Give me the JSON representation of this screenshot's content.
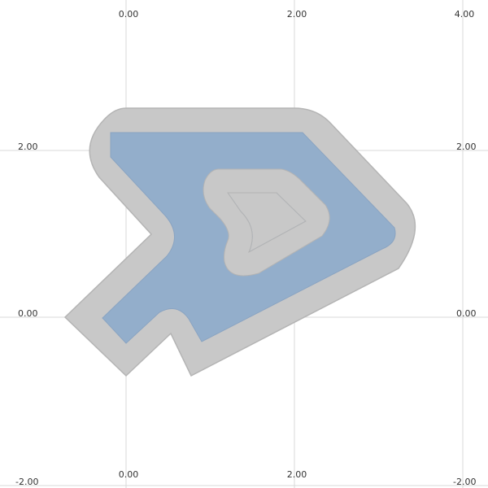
{
  "colors": {
    "background": "#ffffff",
    "grid": "#d8d8d8",
    "buffer_fill": "#c8c8c8",
    "buffer_stroke": "#b4b4b4",
    "shape_fill": "#93aecb",
    "shape_stroke": "#8aa4c2",
    "label": "#333333"
  },
  "chart_data": {
    "type": "geometry",
    "xlim": [
      -1.5,
      4.3
    ],
    "ylim": [
      -2.05,
      3.7
    ],
    "grid": true,
    "x_gridlines": [
      0,
      2,
      4
    ],
    "y_gridlines": [
      -2,
      0,
      2
    ],
    "tick_labels": {
      "top": [
        "0.00",
        "2.00",
        "4.00"
      ],
      "bottom": [
        "0.00",
        "2.00"
      ],
      "left": [
        "2.00",
        "0.00",
        "-2.00"
      ],
      "right": [
        "2.00",
        "0.00",
        "-2.00"
      ]
    },
    "polygon": {
      "exterior": [
        [
          -0.2,
          2.2
        ],
        [
          2.1,
          2.2
        ],
        [
          3.2,
          1.0
        ],
        [
          0.9,
          -0.25
        ],
        [
          0.55,
          -0.1
        ],
        [
          0.05,
          -0.25
        ],
        [
          -0.3,
          -0.05
        ],
        [
          0.3,
          0.9
        ],
        [
          -0.2,
          1.9
        ]
      ],
      "hole": [
        [
          1.2,
          1.45
        ],
        [
          1.8,
          1.45
        ],
        [
          2.2,
          1.1
        ],
        [
          1.45,
          0.75
        ],
        [
          1.35,
          1.2
        ]
      ]
    },
    "buffer_distance": 0.3
  }
}
